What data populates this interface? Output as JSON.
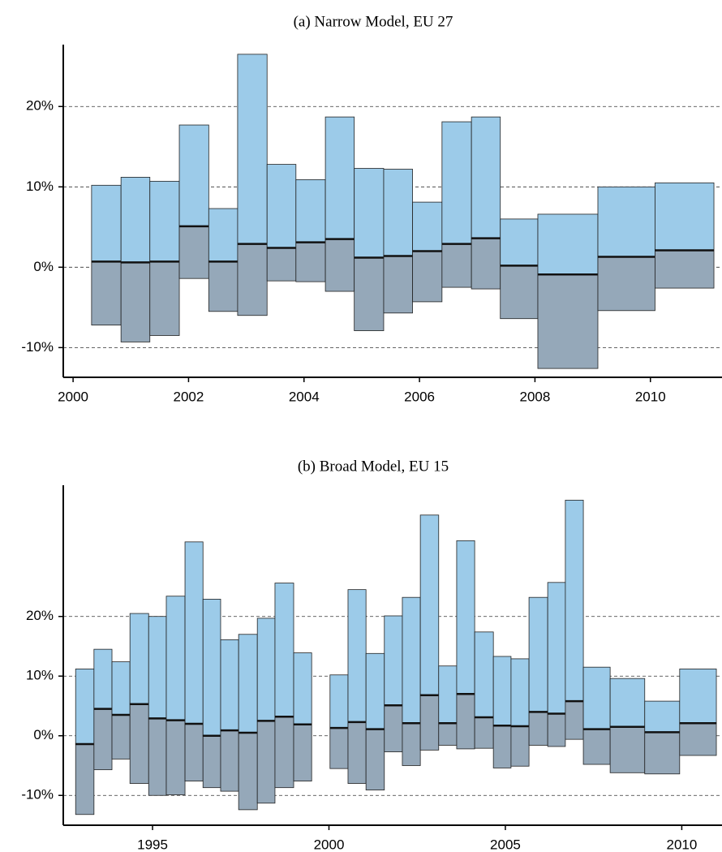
{
  "chart_data": [
    {
      "type": "range_bar",
      "title": "(a)  Narrow Model, EU 27",
      "upper_color": "#9ccbe9",
      "lower_color": "#95a8b9",
      "mid_color": "#111111",
      "x_start": [
        2000.32,
        2000.83,
        2001.33,
        2001.84,
        2002.35,
        2002.85,
        2003.36,
        2003.86,
        2004.37,
        2004.87,
        2005.38,
        2005.88,
        2006.39,
        2006.9,
        2007.4,
        2008.05,
        2009.09,
        2010.08
      ],
      "x_end": [
        2000.83,
        2001.33,
        2001.84,
        2002.35,
        2002.85,
        2003.36,
        2003.86,
        2004.37,
        2004.87,
        2005.38,
        2005.88,
        2006.39,
        2006.9,
        2007.4,
        2008.05,
        2009.09,
        2010.08,
        2011.1
      ],
      "high": [
        10.2,
        11.2,
        10.7,
        17.7,
        7.3,
        26.5,
        12.8,
        10.9,
        18.7,
        12.3,
        12.2,
        8.1,
        18.1,
        18.7,
        6.0,
        6.6,
        10.0,
        10.5
      ],
      "mid": [
        0.7,
        0.6,
        0.7,
        5.1,
        0.7,
        2.9,
        2.4,
        3.1,
        3.5,
        1.2,
        1.4,
        2.0,
        2.9,
        3.6,
        0.2,
        -0.9,
        1.3,
        2.1
      ],
      "low": [
        -7.2,
        -9.3,
        -8.5,
        -1.4,
        -5.5,
        -6.0,
        -1.7,
        -1.8,
        -3.0,
        -7.9,
        -5.7,
        -4.3,
        -2.5,
        -2.7,
        -6.4,
        -12.6,
        -5.4,
        -2.6
      ],
      "xlim": [
        1999.83,
        2011.24
      ],
      "xticks": [
        2000,
        2002,
        2004,
        2006,
        2008,
        2010
      ],
      "ylim": [
        -13.7,
        27.7
      ],
      "yticks": [
        {
          "value": -10,
          "label": "-10%"
        },
        {
          "value": 0,
          "label": "0%"
        },
        {
          "value": 10,
          "label": "10%"
        },
        {
          "value": 20,
          "label": "20%"
        }
      ],
      "grid": true
    },
    {
      "type": "range_bar",
      "title": "(b)  Broad Model, EU 15",
      "upper_color": "#9ccbe9",
      "lower_color": "#95a8b9",
      "mid_color": "#111111",
      "x_start": [
        1992.82,
        1993.34,
        1993.85,
        1994.36,
        1994.89,
        1995.39,
        1995.92,
        1996.43,
        1996.93,
        1997.44,
        1997.97,
        1998.47,
        1999.0,
        2000.03,
        2000.54,
        2001.05,
        2001.57,
        2002.08,
        2002.59,
        2003.11,
        2003.62,
        2004.13,
        2004.66,
        2005.16,
        2005.67,
        2006.2,
        2006.7,
        2007.21,
        2007.97,
        2008.95,
        2009.94
      ],
      "x_end": [
        1993.34,
        1993.85,
        1994.36,
        1994.89,
        1995.39,
        1995.92,
        1996.43,
        1996.93,
        1997.44,
        1997.97,
        1998.47,
        1999.0,
        1999.51,
        2000.54,
        2001.05,
        2001.57,
        2002.08,
        2002.59,
        2003.11,
        2003.62,
        2004.13,
        2004.66,
        2005.16,
        2005.67,
        2006.2,
        2006.7,
        2007.21,
        2007.97,
        2008.95,
        2009.94,
        2010.98
      ],
      "high": [
        11.2,
        14.5,
        12.4,
        20.5,
        20.0,
        23.4,
        32.5,
        22.9,
        16.1,
        17.0,
        19.7,
        25.6,
        13.9,
        10.2,
        24.5,
        13.8,
        20.1,
        23.2,
        37.0,
        11.7,
        32.7,
        17.4,
        13.3,
        12.9,
        23.2,
        25.7,
        39.5,
        11.5,
        9.6,
        5.8,
        11.2
      ],
      "mid": [
        -1.4,
        4.5,
        3.5,
        5.3,
        2.9,
        2.6,
        2.0,
        0.0,
        0.9,
        0.5,
        2.5,
        3.2,
        1.9,
        1.3,
        2.3,
        1.1,
        5.1,
        2.1,
        6.8,
        2.1,
        7.0,
        3.1,
        1.7,
        1.6,
        4.0,
        3.7,
        5.8,
        1.1,
        1.5,
        0.6,
        2.1
      ],
      "low": [
        -13.2,
        -5.7,
        -3.9,
        -8.0,
        -10.0,
        -9.9,
        -7.6,
        -8.7,
        -9.3,
        -12.4,
        -11.3,
        -8.7,
        -7.6,
        -5.5,
        -8.0,
        -9.1,
        -2.7,
        -5.0,
        -2.4,
        -1.6,
        -2.2,
        -2.1,
        -5.4,
        -5.1,
        -1.6,
        -1.8,
        -0.6,
        -4.8,
        -6.2,
        -6.4,
        -3.3
      ],
      "xlim": [
        1992.47,
        2011.14
      ],
      "xticks": [
        1995,
        2000,
        2005,
        2010
      ],
      "ylim": [
        -15.0,
        42.0
      ],
      "yticks": [
        {
          "value": -10,
          "label": "-10%"
        },
        {
          "value": 0,
          "label": "0%"
        },
        {
          "value": 10,
          "label": "10%"
        },
        {
          "value": 20,
          "label": "20%"
        }
      ],
      "grid": true
    }
  ]
}
